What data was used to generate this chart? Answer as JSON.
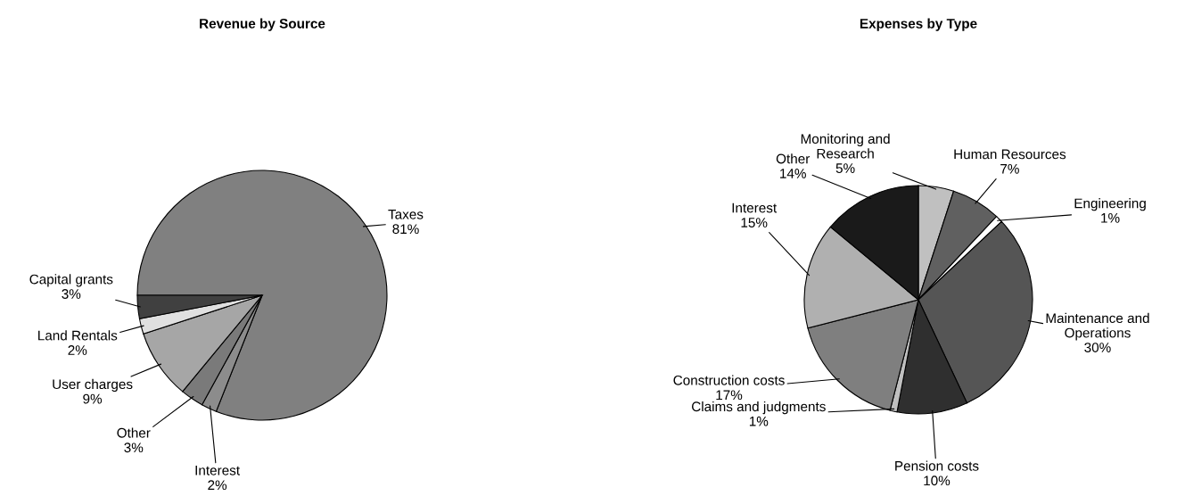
{
  "chart_data": [
    {
      "type": "pie",
      "title": "Revenue by Source",
      "categories": [
        "Taxes",
        "Interest",
        "Other",
        "User charges",
        "Land Rentals",
        "Capital grants"
      ],
      "values": [
        81,
        2,
        3,
        9,
        2,
        3
      ],
      "value_labels": [
        "81%",
        "2%",
        "3%",
        "9%",
        "2%",
        "3%"
      ],
      "colors": [
        "#808080",
        "#8c8c8c",
        "#7a7a7a",
        "#a6a6a6",
        "#e0e0e0",
        "#404040"
      ]
    },
    {
      "type": "pie",
      "title": "Expenses by Type",
      "categories": [
        "Monitoring and\nResearch",
        "Human Resources",
        "Engineering",
        "Maintenance and\nOperations",
        "Pension costs",
        "Claims and judgments",
        "Construction costs",
        "Interest",
        "Other"
      ],
      "values": [
        5,
        7,
        1,
        30,
        10,
        1,
        17,
        15,
        14
      ],
      "value_labels": [
        "5%",
        "7%",
        "1%",
        "30%",
        "10%",
        "1%",
        "17%",
        "15%",
        "14%"
      ],
      "colors": [
        "#c0c0c0",
        "#606060",
        "#ffffff",
        "#555555",
        "#2f2f2f",
        "#c0c0c0",
        "#7f7f7f",
        "#b0b0b0",
        "#1a1a1a"
      ]
    }
  ]
}
